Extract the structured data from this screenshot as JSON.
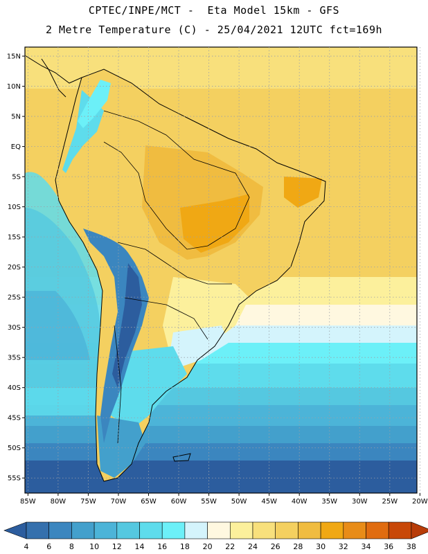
{
  "title": {
    "line1": "CPTEC/INPE/MCT -  Eta Model 15km - GFS",
    "line2": "2 Metre Temperature (C) - 25/04/2021 12UTC fct=169h"
  },
  "map": {
    "region": "South America",
    "lat_labels": [
      "15N",
      "10N",
      "5N",
      "EQ",
      "5S",
      "10S",
      "15S",
      "20S",
      "25S",
      "30S",
      "35S",
      "40S",
      "45S",
      "50S",
      "55S"
    ],
    "lat_values": [
      15,
      10,
      5,
      0,
      -5,
      -10,
      -15,
      -20,
      -25,
      -30,
      -35,
      -40,
      -45,
      -50,
      -55
    ],
    "lon_labels": [
      "85W",
      "80W",
      "75W",
      "70W",
      "65W",
      "60W",
      "55W",
      "50W",
      "45W",
      "40W",
      "35W",
      "30W",
      "25W",
      "20W"
    ],
    "lon_values": [
      -85,
      -80,
      -75,
      -70,
      -65,
      -60,
      -55,
      -50,
      -45,
      -40,
      -35,
      -30,
      -25,
      -20
    ],
    "lat_range": [
      -57.5,
      16.5
    ],
    "lon_range": [
      -85.5,
      -20.5
    ]
  },
  "colorbar": {
    "labels": [
      "4",
      "6",
      "8",
      "10",
      "12",
      "14",
      "16",
      "18",
      "20",
      "22",
      "24",
      "26",
      "28",
      "30",
      "32",
      "34",
      "36",
      "38"
    ],
    "colors": [
      "#2c5d9e",
      "#3570ad",
      "#3b86bf",
      "#43a0cc",
      "#4cb4d8",
      "#55c8e0",
      "#5edcec",
      "#6cf0f8",
      "#d4f4fc",
      "#fff8e0",
      "#fcf09c",
      "#f8e07c",
      "#f4d060",
      "#f0bc40",
      "#f0a814",
      "#e88c18",
      "#e06c10",
      "#c84808",
      "#b83c08"
    ]
  }
}
